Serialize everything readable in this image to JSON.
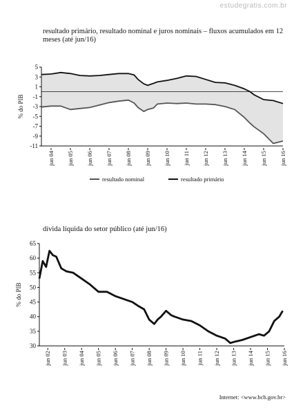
{
  "watermark": "estudegratis.com.br",
  "footer": "Internet: <www.bcb.gov.br>",
  "chart_data": [
    {
      "type": "area",
      "title": "resultado primário, resultado nominal e juros nominais – fluxos acumulados em 12 meses (até jun/16)",
      "ylabel": "% do PIB",
      "ylim": [
        -11,
        5
      ],
      "yticks": [
        "5",
        "3",
        "1",
        "-1",
        "-3",
        "-5",
        "-7",
        "-9",
        "-11"
      ],
      "xlim": [
        2004.0,
        2016.5
      ],
      "xticks": [
        "jun 04",
        "jun 05",
        "jun 06",
        "jun 07",
        "jun 08",
        "jun 09",
        "jun 10",
        "jun 11",
        "jun 12",
        "jun 13",
        "jun 14",
        "jun 15",
        "jun 16"
      ],
      "legend": [
        "resultado nominal",
        "resultado primário"
      ],
      "legend_position": "bottom",
      "series": [
        {
          "name": "resultado primário",
          "color": "#111111",
          "x": [
            2004.0,
            2004.5,
            2005.0,
            2005.5,
            2006.0,
            2006.5,
            2007.0,
            2007.5,
            2008.0,
            2008.5,
            2008.8,
            2009.0,
            2009.3,
            2009.5,
            2009.8,
            2010.0,
            2010.5,
            2011.0,
            2011.5,
            2012.0,
            2012.5,
            2013.0,
            2013.5,
            2014.0,
            2014.5,
            2014.8,
            2015.0,
            2015.5,
            2016.0,
            2016.5
          ],
          "values": [
            3.5,
            3.6,
            3.9,
            3.7,
            3.3,
            3.2,
            3.3,
            3.5,
            3.7,
            3.7,
            3.4,
            2.5,
            1.6,
            1.3,
            1.7,
            2.0,
            2.3,
            2.7,
            3.2,
            3.1,
            2.5,
            1.9,
            1.8,
            1.3,
            0.6,
            0.0,
            -0.6,
            -1.6,
            -1.8,
            -2.4
          ]
        },
        {
          "name": "resultado nominal",
          "color": "#555555",
          "x": [
            2004.0,
            2004.5,
            2005.0,
            2005.5,
            2006.0,
            2006.5,
            2007.0,
            2007.5,
            2008.0,
            2008.5,
            2008.8,
            2009.0,
            2009.3,
            2009.5,
            2009.8,
            2010.0,
            2010.5,
            2011.0,
            2011.5,
            2012.0,
            2012.5,
            2013.0,
            2013.5,
            2014.0,
            2014.5,
            2014.8,
            2015.0,
            2015.5,
            2016.0,
            2016.5
          ],
          "values": [
            -3.1,
            -2.9,
            -2.9,
            -3.6,
            -3.4,
            -3.2,
            -2.7,
            -2.2,
            -1.9,
            -1.7,
            -2.3,
            -3.2,
            -4.0,
            -3.6,
            -3.3,
            -2.5,
            -2.3,
            -2.4,
            -2.3,
            -2.5,
            -2.5,
            -2.6,
            -3.0,
            -3.6,
            -5.2,
            -6.4,
            -7.1,
            -8.5,
            -10.5,
            -10.0
          ]
        }
      ]
    },
    {
      "type": "line",
      "title": "dívida líquida do setor público (até jun/16)",
      "ylabel": "% do PIB",
      "ylim": [
        30,
        65
      ],
      "yticks": [
        "65",
        "60",
        "55",
        "50",
        "45",
        "40",
        "35",
        "30"
      ],
      "xlim": [
        2002.0,
        2016.5
      ],
      "xticks": [
        "jun 02",
        "jun 03",
        "jun 04",
        "jun 05",
        "jun 06",
        "jun 07",
        "jun 08",
        "jun 09",
        "jun 10",
        "jun 11",
        "jun 12",
        "jun 13",
        "jun 14",
        "jun 15",
        "jun 16"
      ],
      "series": [
        {
          "name": "",
          "color": "#111111",
          "x": [
            2002.0,
            2002.2,
            2002.4,
            2002.6,
            2002.8,
            2003.0,
            2003.3,
            2003.6,
            2004.0,
            2004.5,
            2005.0,
            2005.5,
            2006.0,
            2006.5,
            2007.0,
            2007.5,
            2007.9,
            2008.2,
            2008.5,
            2008.8,
            2009.0,
            2009.2,
            2009.5,
            2009.8,
            2010.0,
            2010.5,
            2011.0,
            2011.5,
            2012.0,
            2012.5,
            2013.0,
            2013.3,
            2013.6,
            2014.0,
            2014.5,
            2015.0,
            2015.3,
            2015.6,
            2015.9,
            2016.2,
            2016.4
          ],
          "values": [
            53.0,
            59.0,
            57.0,
            62.5,
            61.0,
            60.5,
            56.5,
            55.5,
            55.0,
            53.0,
            51.0,
            48.5,
            48.5,
            47.0,
            46.0,
            45.0,
            43.5,
            42.5,
            39.0,
            37.5,
            39.0,
            40.0,
            42.0,
            40.5,
            40.0,
            39.0,
            38.5,
            37.0,
            35.0,
            33.5,
            32.5,
            31.0,
            31.5,
            32.0,
            33.0,
            34.0,
            33.5,
            35.0,
            38.5,
            40.0,
            42.0
          ]
        }
      ]
    }
  ]
}
